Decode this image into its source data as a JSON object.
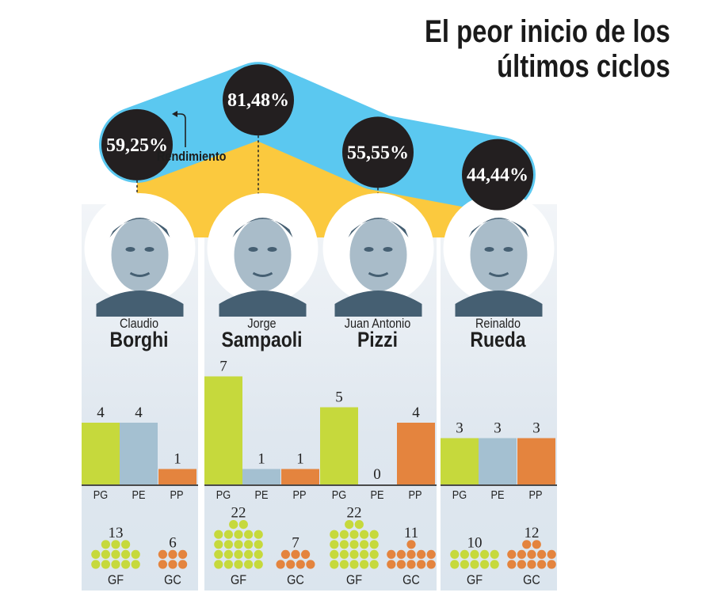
{
  "title": {
    "line1": "El peor inicio de los",
    "line2": "últimos ciclos"
  },
  "annotation": "Rendimiento",
  "colors": {
    "band_blue": "#5bc8f0",
    "band_yellow": "#fbc93e",
    "circle_black": "#231f20",
    "pg_green": "#c6d93c",
    "pe_blue": "#a4c0d1",
    "pp_orange": "#e4843e",
    "axis": "#4a4a4a"
  },
  "chart_data": {
    "type": "bar",
    "title": "El peor inicio de los últimos ciclos",
    "categories": [
      "PG",
      "PE",
      "PP"
    ],
    "goal_categories": [
      "GF",
      "GC"
    ],
    "coaches": [
      {
        "first": "Claudio",
        "last": "Borghi",
        "rendimiento": "59,25%",
        "rend_value": 59.25,
        "PG": 4,
        "PE": 4,
        "PP": 1,
        "GF": 13,
        "GC": 6
      },
      {
        "first": "Jorge",
        "last": "Sampaoli",
        "rendimiento": "81,48%",
        "rend_value": 81.48,
        "PG": 7,
        "PE": 1,
        "PP": 1,
        "GF": 22,
        "GC": 7
      },
      {
        "first": "Juan Antonio",
        "last": "Pizzi",
        "rendimiento": "55,55%",
        "rend_value": 55.55,
        "PG": 5,
        "PE": 0,
        "PP": 4,
        "GF": 22,
        "GC": 11
      },
      {
        "first": "Reinaldo",
        "last": "Rueda",
        "rendimiento": "44,44%",
        "rend_value": 44.44,
        "PG": 3,
        "PE": 3,
        "PP": 3,
        "GF": 10,
        "GC": 12
      }
    ],
    "ylim": [
      0,
      7
    ]
  }
}
